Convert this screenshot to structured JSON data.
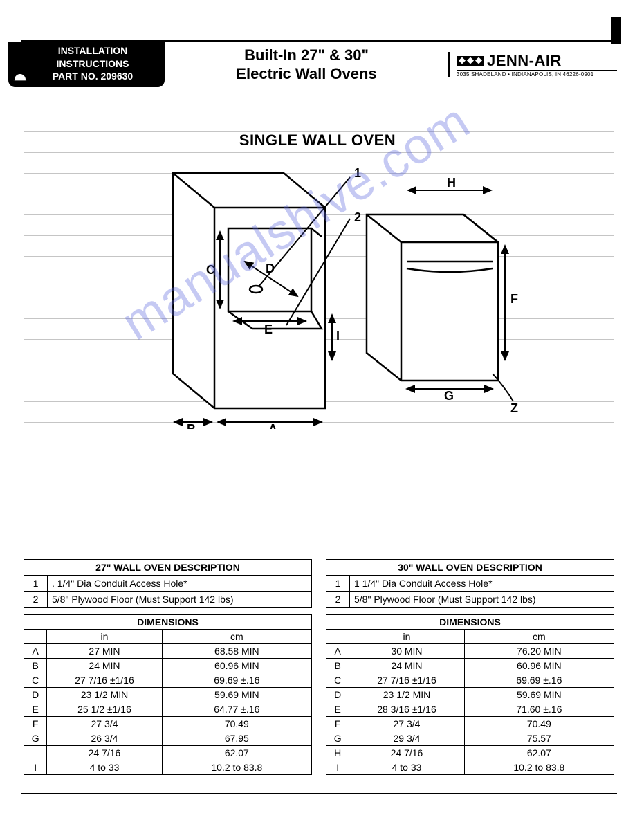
{
  "header": {
    "tab_line1": "INSTALLATION",
    "tab_line2": "INSTRUCTIONS",
    "tab_line3": "PART NO. 209630",
    "title_line1": "Built-In  27\" & 30\"",
    "title_line2": "Electric Wall Ovens",
    "brand_name": "JENN-AIR",
    "brand_addr": "3035 SHADELAND • INDIANAPOLIS, IN 46226-0901"
  },
  "section_title": "SINGLE WALL OVEN",
  "watermark": "manualshive.com",
  "diagram": {
    "labels": {
      "A": "A",
      "B": "B",
      "C": "C",
      "D": "D",
      "E": "E",
      "F": "F",
      "G": "G",
      "H": "H",
      "I": "I",
      "Z": "Z",
      "1": "1",
      "2": "2"
    },
    "stroke": "#000000",
    "fill": "#ffffff"
  },
  "tables": {
    "left": {
      "desc_title": "27\" WALL OVEN DESCRIPTION",
      "desc_rows": [
        {
          "n": "1",
          "t": ". 1/4\" Dia Conduit Access Hole*"
        },
        {
          "n": "2",
          "t": "5/8\" Plywood Floor (Must Support 142 lbs)"
        }
      ],
      "dim_title": "DIMENSIONS",
      "dim_head_in": "in",
      "dim_head_cm": "cm",
      "dim_rows": [
        {
          "l": "A",
          "in": "27 MIN",
          "cm": "68.58 MIN"
        },
        {
          "l": "B",
          "in": "24 MIN",
          "cm": "60.96 MIN"
        },
        {
          "l": "C",
          "in": "27 7/16 ±1/16",
          "cm": "69.69 ±.16"
        },
        {
          "l": "D",
          "in": "23 1/2  MIN",
          "cm": "59.69 MIN"
        },
        {
          "l": "E",
          "in": "25 1/2 ±1/16",
          "cm": "64.77 ±.16"
        },
        {
          "l": "F",
          "in": "27 3/4",
          "cm": "70.49"
        },
        {
          "l": "G",
          "in": "26 3/4",
          "cm": "67.95"
        },
        {
          "l": "",
          "in": "24 7/16",
          "cm": "62.07"
        },
        {
          "l": "I",
          "in": "4 to 33",
          "cm": "10.2  to 83.8"
        }
      ]
    },
    "right": {
      "desc_title": "30\" WALL OVEN DESCRIPTION",
      "desc_rows": [
        {
          "n": "1",
          "t": "1 1/4\" Dia Conduit Access Hole*"
        },
        {
          "n": "2",
          "t": "5/8\" Plywood Floor (Must Support 142 lbs)"
        }
      ],
      "dim_title": "DIMENSIONS",
      "dim_head_in": "in",
      "dim_head_cm": "cm",
      "dim_rows": [
        {
          "l": "A",
          "in": "30 MIN",
          "cm": "76.20 MIN"
        },
        {
          "l": "B",
          "in": "24 MIN",
          "cm": "60.96 MIN"
        },
        {
          "l": "C",
          "in": "27 7/16 ±1/16",
          "cm": "69.69 ±.16"
        },
        {
          "l": "D",
          "in": "23 1/2  MIN",
          "cm": "59.69 MIN"
        },
        {
          "l": "E",
          "in": "28 3/16 ±1/16",
          "cm": "71.60 ±.16"
        },
        {
          "l": "F",
          "in": "27 3/4",
          "cm": "70.49"
        },
        {
          "l": "G",
          "in": "29  3/4",
          "cm": "75.57"
        },
        {
          "l": "H",
          "in": "24  7/16",
          "cm": "62.07"
        },
        {
          "l": "I",
          "in": "4 to 33",
          "cm": "10.2  to 83.8"
        }
      ]
    }
  },
  "ruled_line_color": "#c5c5c5",
  "ruled_line_positions": [
    0,
    30,
    60,
    90,
    120,
    150,
    180,
    210,
    240,
    270,
    300,
    330,
    360,
    390,
    420
  ]
}
